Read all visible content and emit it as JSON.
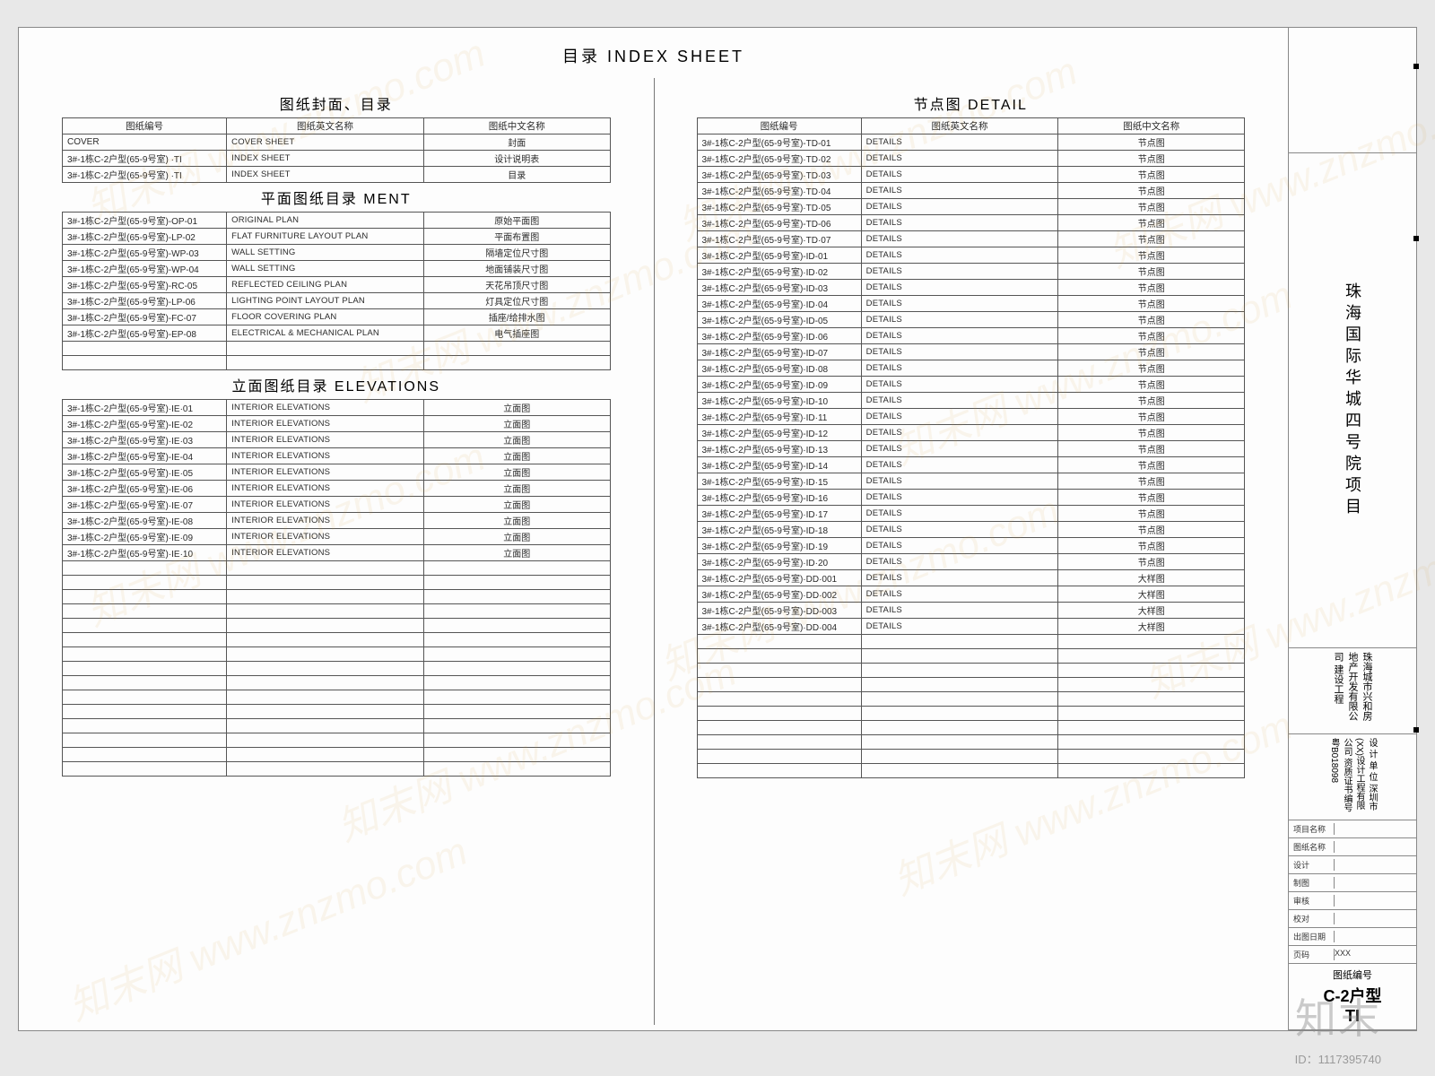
{
  "page_title": "目录 INDEX SHEET",
  "left": {
    "sections": [
      {
        "title": "图纸封面、目录",
        "headers": [
          "图纸编号",
          "图纸英文名称",
          "图纸中文名称"
        ],
        "rows": [
          [
            "COVER",
            "COVER SHEET",
            "封面"
          ],
          [
            "3#-1栋C-2户型(65-9号室) ·TI",
            "INDEX SHEET",
            "设计说明表"
          ],
          [
            "3#-1栋C-2户型(65-9号室) ·TI",
            "INDEX SHEET",
            "目录"
          ]
        ]
      },
      {
        "title": "平面图纸目录  MENT",
        "headers": null,
        "rows": [
          [
            "3#-1栋C-2户型(65-9号室)-OP-01",
            "ORIGINAL PLAN",
            "原始平面图"
          ],
          [
            "3#-1栋C-2户型(65-9号室)-LP-02",
            "FLAT FURNITURE LAYOUT PLAN",
            "平面布置图"
          ],
          [
            "3#-1栋C-2户型(65-9号室)-WP-03",
            "WALL SETTING",
            "隔墙定位尺寸图"
          ],
          [
            "3#-1栋C-2户型(65-9号室)-WP-04",
            "WALL SETTING",
            "地面铺装尺寸图"
          ],
          [
            "3#-1栋C-2户型(65-9号室)-RC-05",
            "REFLECTED CEILING PLAN",
            "天花吊顶尺寸图"
          ],
          [
            "3#-1栋C-2户型(65-9号室)-LP-06",
            "LIGHTING POINT LAYOUT PLAN",
            "灯具定位尺寸图"
          ],
          [
            "3#-1栋C-2户型(65-9号室)-FC-07",
            "FLOOR COVERING PLAN",
            "插座/给排水图"
          ],
          [
            "3#-1栋C-2户型(65-9号室)-EP-08",
            "ELECTRICAL & MECHANICAL PLAN",
            "电气插座图"
          ]
        ],
        "blanks": 2
      },
      {
        "title": "立面图纸目录  ELEVATIONS",
        "headers": null,
        "rows": [
          [
            "3#-1栋C-2户型(65-9号室)·IE·01",
            "INTERIOR ELEVATIONS",
            "立面图"
          ],
          [
            "3#-1栋C-2户型(65-9号室)-IE-02",
            "INTERIOR ELEVATIONS",
            "立面图"
          ],
          [
            "3#-1栋C-2户型(65-9号室)·IE·03",
            "INTERIOR ELEVATIONS",
            "立面图"
          ],
          [
            "3#-1栋C-2户型(65-9号室)-IE-04",
            "INTERIOR ELEVATIONS",
            "立面图"
          ],
          [
            "3#-1栋C-2户型(65-9号室)·IE·05",
            "INTERIOR ELEVATIONS",
            "立面图"
          ],
          [
            "3#-1栋C-2户型(65-9号室)-IE-06",
            "INTERIOR ELEVATIONS",
            "立面图"
          ],
          [
            "3#-1栋C-2户型(65-9号室)·IE·07",
            "INTERIOR ELEVATIONS",
            "立面图"
          ],
          [
            "3#-1栋C-2户型(65-9号室)-IE-08",
            "INTERIOR ELEVATIONS",
            "立面图"
          ],
          [
            "3#-1栋C-2户型(65-9号室)·IE·09",
            "INTERIOR ELEVATIONS",
            "立面图"
          ],
          [
            "3#-1栋C-2户型(65-9号室)·IE·10",
            "INTERIOR ELEVATIONS",
            "立面图"
          ]
        ],
        "blanks": 15
      }
    ]
  },
  "right": {
    "sections": [
      {
        "title": "节点图  DETAIL",
        "headers": [
          "图纸编号",
          "图纸英文名称",
          "图纸中文名称"
        ],
        "rows": [
          [
            "3#-1栋C-2户型(65-9号室)-TD-01",
            "DETAILS",
            "节点图"
          ],
          [
            "3#-1栋C-2户型(65-9号室)·TD·02",
            "DETAILS",
            "节点图"
          ],
          [
            "3#-1栋C-2户型(65-9号室)·TD·03",
            "DETAILS",
            "节点图"
          ],
          [
            "3#-1栋C-2户型(65-9号室)·TD·04",
            "DETAILS",
            "节点图"
          ],
          [
            "3#-1栋C-2户型(65-9号室)·TD·05",
            "DETAILS",
            "节点图"
          ],
          [
            "3#-1栋C-2户型(65-9号室)-TD-06",
            "DETAILS",
            "节点图"
          ],
          [
            "3#-1栋C-2户型(65-9号室)·TD·07",
            "DETAILS",
            "节点图"
          ],
          [
            "3#-1栋C-2户型(65-9号室)-ID-01",
            "DETAILS",
            "节点图"
          ],
          [
            "3#-1栋C-2户型(65-9号室)·ID·02",
            "DETAILS",
            "节点图"
          ],
          [
            "3#-1栋C-2户型(65-9号室)-ID-03",
            "DETAILS",
            "节点图"
          ],
          [
            "3#-1栋C-2户型(65-9号室)·ID·04",
            "DETAILS",
            "节点图"
          ],
          [
            "3#-1栋C-2户型(65-9号室)-ID-05",
            "DETAILS",
            "节点图"
          ],
          [
            "3#-1栋C-2户型(65-9号室)·ID·06",
            "DETAILS",
            "节点图"
          ],
          [
            "3#-1栋C-2户型(65-9号室)-ID-07",
            "DETAILS",
            "节点图"
          ],
          [
            "3#-1栋C-2户型(65-9号室)·ID·08",
            "DETAILS",
            "节点图"
          ],
          [
            "3#-1栋C-2户型(65-9号室)·ID·09",
            "DETAILS",
            "节点图"
          ],
          [
            "3#-1栋C-2户型(65-9号室)-ID-10",
            "DETAILS",
            "节点图"
          ],
          [
            "3#-1栋C-2户型(65-9号室)·ID·11",
            "DETAILS",
            "节点图"
          ],
          [
            "3#-1栋C-2户型(65-9号室)-ID-12",
            "DETAILS",
            "节点图"
          ],
          [
            "3#-1栋C-2户型(65-9号室)·ID·13",
            "DETAILS",
            "节点图"
          ],
          [
            "3#-1栋C-2户型(65-9号室)-ID-14",
            "DETAILS",
            "节点图"
          ],
          [
            "3#-1栋C-2户型(65-9号室)·ID·15",
            "DETAILS",
            "节点图"
          ],
          [
            "3#-1栋C-2户型(65-9号室)-ID-16",
            "DETAILS",
            "节点图"
          ],
          [
            "3#-1栋C-2户型(65-9号室)·ID·17",
            "DETAILS",
            "节点图"
          ],
          [
            "3#-1栋C-2户型(65-9号室)-ID-18",
            "DETAILS",
            "节点图"
          ],
          [
            "3#-1栋C-2户型(65-9号室)·ID·19",
            "DETAILS",
            "节点图"
          ],
          [
            "3#-1栋C-2户型(65-9号室)·ID·20",
            "DETAILS",
            "节点图"
          ],
          [
            "3#-1栋C-2户型(65-9号室)·DD·001",
            "DETAILS",
            "大样图"
          ],
          [
            "3#-1栋C-2户型(65-9号室)·DD·002",
            "DETAILS",
            "大样图"
          ],
          [
            "3#-1栋C-2户型(65-9号室)-DD-003",
            "DETAILS",
            "大样图"
          ],
          [
            "3#-1栋C-2户型(65-9号室)·DD·004",
            "DETAILS",
            "大样图"
          ]
        ],
        "blanks": 10
      }
    ]
  },
  "titleblock": {
    "project": "珠海国际华城四号院项目",
    "client": "珠海城市兴和房地产开发有限公司\n建设工程",
    "designer": "设  计  单  位\n深圳市(XX)设计工程有限公司\n资质证书编号\n粤B018098",
    "meta": [
      {
        "label": "项目名称",
        "value": ""
      },
      {
        "label": "图纸名称",
        "value": ""
      },
      {
        "label": "设计",
        "value": ""
      },
      {
        "label": "制图",
        "value": ""
      },
      {
        "label": "审核",
        "value": ""
      },
      {
        "label": "校对",
        "value": ""
      },
      {
        "label": "出图日期",
        "value": ""
      },
      {
        "label": "页码",
        "value": "XXX"
      }
    ],
    "dwg_label": "图纸编号",
    "dwg_no": "C-2户型\nTI"
  },
  "watermark_text": "知末网 www.znzmo.com",
  "logo_text": "知末",
  "id_text": "ID：1117395740"
}
